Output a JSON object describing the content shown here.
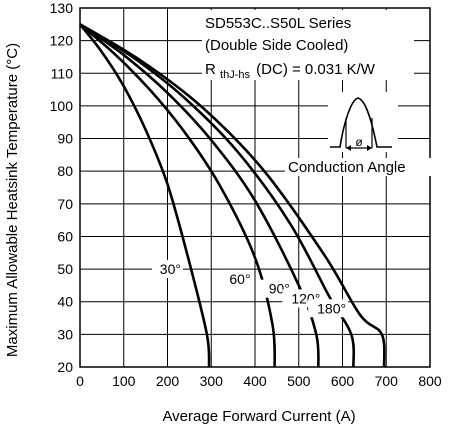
{
  "chart_data": {
    "type": "line",
    "xlabel": "Average Forward Current (A)",
    "ylabel": "Maximum Allowable Heatsink Temperature (°C)",
    "xlim": [
      0,
      800
    ],
    "ylim": [
      20,
      130
    ],
    "xticks": [
      "0",
      "100",
      "200",
      "300",
      "400",
      "500",
      "600",
      "700",
      "800"
    ],
    "yticks": [
      "20",
      "30",
      "40",
      "50",
      "60",
      "70",
      "80",
      "90",
      "100",
      "110",
      "120",
      "130"
    ],
    "grid": true,
    "annotations": {
      "line1": "SD553C..S50L Series",
      "line2": "(Double Side Cooled)",
      "line3_main": "R",
      "line3_sub": "thJ-hs",
      "line3_tail": "(DC) = 0.031 K/W",
      "inset_symbol": "ø",
      "inset_caption": "Conduction Angle"
    },
    "series": [
      {
        "name": "30°",
        "x": [
          0,
          50,
          100,
          150,
          200,
          250,
          290,
          295
        ],
        "y": [
          125,
          116.5,
          106,
          92.7,
          76,
          52,
          30,
          20
        ]
      },
      {
        "name": "60°",
        "x": [
          0,
          80,
          160,
          240,
          320,
          400,
          440,
          445
        ],
        "y": [
          125,
          115.8,
          104.9,
          91.8,
          75.5,
          53.5,
          33,
          20
        ]
      },
      {
        "name": "90°",
        "x": [
          0,
          100,
          200,
          300,
          400,
          500,
          540,
          545
        ],
        "y": [
          125,
          115.6,
          104,
          89.5,
          71,
          45,
          30,
          20
        ]
      },
      {
        "name": "120°",
        "x": [
          0,
          120,
          240,
          360,
          480,
          570,
          620,
          625
        ],
        "y": [
          125,
          115,
          102.3,
          86,
          64,
          41.5,
          30,
          20
        ]
      },
      {
        "name": "180°",
        "x": [
          0,
          140,
          280,
          420,
          560,
          640,
          690,
          695
        ],
        "y": [
          125,
          113.8,
          99.5,
          80.2,
          54,
          36,
          30,
          20
        ]
      }
    ]
  }
}
